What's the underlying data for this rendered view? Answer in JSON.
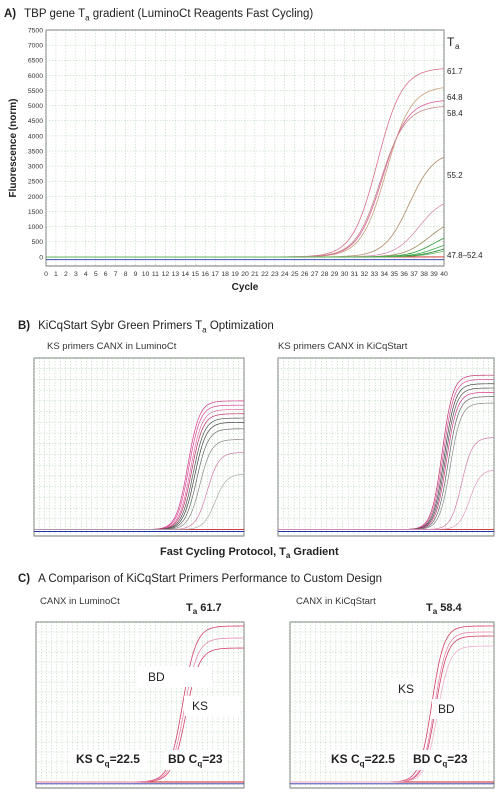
{
  "panel_a": {
    "letter": "A)",
    "title": "TBP gene T",
    "title_sub": "a",
    "title_rest": " gradient (LuminoCt Reagents Fast Cycling)",
    "legend_title": "T",
    "legend_title_sub": "a"
  },
  "panel_b": {
    "letter": "B)",
    "title": "KiCqStart Sybr Green Primers T",
    "title_sub": "a",
    "title_rest": " Optimization",
    "left_subtitle": "KS primers CANX in LuminoCt",
    "right_subtitle": "KS primers CANX in KiCqStart",
    "bottom_label": "Fast Cycling Protocol, T",
    "bottom_label_sub": "a",
    "bottom_label_rest": " Gradient"
  },
  "panel_c": {
    "letter": "C)",
    "title": "A Comparison of KiCqStart Primers Performance to Custom Design",
    "left_subtitle": "CANX in LuminoCt",
    "left_ta": "T",
    "left_ta_sub": "a",
    "left_ta_value": " 61.7",
    "right_subtitle": "CANX in KiCqStart",
    "right_ta": "T",
    "right_ta_sub": "a",
    "right_ta_value": " 58.4",
    "left_bd": "BD",
    "left_ks": "KS",
    "right_ks": "KS",
    "right_bd": "BD",
    "ks_cq_prefix": "KS C",
    "ks_cq_sub": "q",
    "ks_cq_value": "=22.5",
    "bd_cq_prefix": "BD C",
    "bd_cq_sub": "q",
    "bd_cq_value": "=23"
  },
  "chart_data": [
    {
      "id": "A",
      "type": "line",
      "title": "TBP gene Ta gradient (LuminoCt Reagents Fast Cycling)",
      "xlabel": "Cycle",
      "ylabel": "Fluorescence (norm)",
      "xlim": [
        0,
        40
      ],
      "ylim": [
        -300,
        7500
      ],
      "xticks": [
        0,
        1,
        2,
        3,
        4,
        5,
        6,
        7,
        8,
        9,
        10,
        11,
        12,
        13,
        14,
        15,
        16,
        17,
        18,
        19,
        20,
        21,
        22,
        23,
        24,
        25,
        26,
        27,
        28,
        29,
        30,
        31,
        32,
        33,
        34,
        35,
        36,
        37,
        38,
        39,
        40
      ],
      "yticks": [
        0,
        500,
        1000,
        1500,
        2000,
        2500,
        3000,
        3500,
        4000,
        4500,
        5000,
        5500,
        6000,
        6500,
        7000,
        7500
      ],
      "grid": true,
      "threshold": 50,
      "series_labels": [
        "61.7",
        "64.8",
        "58.4",
        "55.2",
        "47.8–52.4"
      ],
      "series": [
        {
          "name": "61.7",
          "color": "#d9708a",
          "midpoint": 33.3,
          "plateau": 6250
        },
        {
          "name": "64.8",
          "color": "#c9a07a",
          "midpoint": 34.2,
          "plateau": 5650
        },
        {
          "name": "58.4",
          "color": "#e0609a",
          "midpoint": 33.8,
          "plateau": 5200
        },
        {
          "name": "",
          "color": "#c48a8a",
          "midpoint": 33.6,
          "plateau": 5000
        },
        {
          "name": "55.2",
          "color": "#b08a6a",
          "midpoint": 36.5,
          "plateau": 3500
        },
        {
          "name": "",
          "color": "#d890b0",
          "midpoint": 37.5,
          "plateau": 2000
        },
        {
          "name": "",
          "color": "#a08a60",
          "midpoint": 38.5,
          "plateau": 1300
        },
        {
          "name": "47.8–52.4",
          "color": "#2f9a3a",
          "midpoint": 39.0,
          "plateau": 900
        },
        {
          "name": "",
          "color": "#40a848",
          "midpoint": 39.3,
          "plateau": 600
        },
        {
          "name": "",
          "color": "#208030",
          "midpoint": 39.6,
          "plateau": 450
        },
        {
          "name": "",
          "color": "#60b860",
          "midpoint": 39.8,
          "plateau": 350
        }
      ]
    },
    {
      "id": "B-left",
      "type": "line",
      "title": "KS primers CANX in LuminoCt",
      "xlim": [
        0,
        40
      ],
      "ylim": [
        -300,
        8000
      ],
      "series": [
        {
          "color": "#d63a8a",
          "midpoint": 29.3,
          "plateau": 6000
        },
        {
          "color": "#d64a9a",
          "midpoint": 29.5,
          "plateau": 5800
        },
        {
          "color": "#e06aa8",
          "midpoint": 29.8,
          "plateau": 5600
        },
        {
          "color": "#c0306a",
          "midpoint": 30.0,
          "plateau": 5400
        },
        {
          "color": "#555555",
          "midpoint": 30.3,
          "plateau": 5200
        },
        {
          "color": "#444444",
          "midpoint": 30.6,
          "plateau": 5000
        },
        {
          "color": "#666666",
          "midpoint": 31.0,
          "plateau": 4700
        },
        {
          "color": "#888888",
          "midpoint": 31.6,
          "plateau": 4200
        },
        {
          "color": "#d27aa6",
          "midpoint": 33.0,
          "plateau": 3600
        },
        {
          "color": "#aaaaaa",
          "midpoint": 34.5,
          "plateau": 2600
        }
      ]
    },
    {
      "id": "B-right",
      "type": "line",
      "title": "KS primers CANX in KiCqStart",
      "xlim": [
        0,
        40
      ],
      "ylim": [
        -300,
        8000
      ],
      "series": [
        {
          "color": "#c0306a",
          "midpoint": 30.4,
          "plateau": 7200
        },
        {
          "color": "#d64a9a",
          "midpoint": 30.6,
          "plateau": 7000
        },
        {
          "color": "#444444",
          "midpoint": 30.8,
          "plateau": 6800
        },
        {
          "color": "#555555",
          "midpoint": 31.0,
          "plateau": 6600
        },
        {
          "color": "#d63a8a",
          "midpoint": 31.2,
          "plateau": 6400
        },
        {
          "color": "#666666",
          "midpoint": 31.5,
          "plateau": 6200
        },
        {
          "color": "#888888",
          "midpoint": 31.9,
          "plateau": 5900
        },
        {
          "color": "#d27aa6",
          "midpoint": 34.0,
          "plateau": 4300
        },
        {
          "color": "#e09ac0",
          "midpoint": 35.5,
          "plateau": 2800
        }
      ]
    },
    {
      "id": "C-left",
      "type": "line",
      "title": "CANX in LuminoCt",
      "xlim": [
        0,
        40
      ],
      "ylim": [
        -300,
        8000
      ],
      "series": [
        {
          "name": "BD",
          "color": "#d6406a",
          "midpoint": 28.2,
          "plateau": 7800
        },
        {
          "name": "KS",
          "color": "#d6406a",
          "midpoint": 28.8,
          "plateau": 6700
        },
        {
          "name": "",
          "color": "#e88ab0",
          "midpoint": 28.5,
          "plateau": 7200
        }
      ],
      "annotations": [
        "KS Cq=22.5",
        "BD Cq=23"
      ]
    },
    {
      "id": "C-right",
      "type": "line",
      "title": "CANX in KiCqStart",
      "xlim": [
        0,
        40
      ],
      "ylim": [
        -300,
        8000
      ],
      "series": [
        {
          "name": "KS",
          "color": "#d6406a",
          "midpoint": 27.8,
          "plateau": 7800
        },
        {
          "name": "BD",
          "color": "#d6406a",
          "midpoint": 28.5,
          "plateau": 7300
        },
        {
          "name": "",
          "color": "#e88ab0",
          "midpoint": 28.3,
          "plateau": 7500
        },
        {
          "name": "",
          "color": "#f0b0cc",
          "midpoint": 28.9,
          "plateau": 6800
        }
      ],
      "annotations": [
        "KS Cq=22.5",
        "BD Cq=23"
      ]
    }
  ]
}
